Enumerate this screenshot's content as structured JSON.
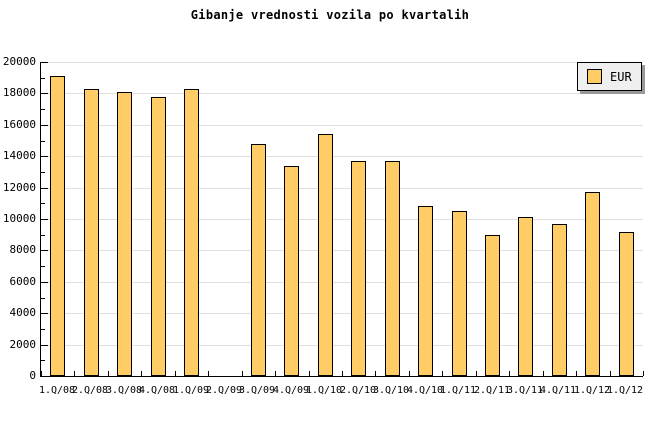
{
  "title": "Gibanje vrednosti vozila po kvartalih",
  "legend": {
    "items": [
      {
        "label": "EUR"
      }
    ]
  },
  "colors": {
    "background": "#ffffff",
    "bar_fill": "#FFCC66",
    "bar_border": "#000000",
    "grid": "#E0E0E0",
    "axis": "#000000",
    "text": "#000000",
    "legend_bg": "#EFEFEF",
    "legend_border": "#000000",
    "legend_shadow": "#999999"
  },
  "chart_data": {
    "type": "bar",
    "title": "Gibanje vrednosti vozila po kvartalih",
    "categories": [
      "1.Q/08",
      "2.Q/08",
      "3.Q/08",
      "4.Q/08",
      "1.Q/09",
      "2.Q/09",
      "3.Q/09",
      "4.Q/09",
      "1.Q/10",
      "2.Q/10",
      "3.Q/10",
      "4.Q/10",
      "1.Q/11",
      "2.Q/11",
      "3.Q/11",
      "4.Q/11",
      "1.Q/12",
      "1.Q/12"
    ],
    "series": [
      {
        "name": "EUR",
        "values": [
          19100,
          18300,
          18100,
          17800,
          18300,
          null,
          14800,
          13400,
          15400,
          13700,
          13700,
          10800,
          10500,
          9000,
          10100,
          9700,
          11700,
          9200
        ]
      }
    ],
    "xlabel": "",
    "ylabel": "",
    "ylim": [
      0,
      20000
    ],
    "y_major_step": 2000,
    "y_minor_step": 1000,
    "y_tick_labels": [
      "0",
      "2000",
      "4000",
      "6000",
      "8000",
      "10000",
      "12000",
      "14000",
      "16000",
      "18000",
      "20000"
    ],
    "grid": true,
    "legend_position": "top-right"
  }
}
